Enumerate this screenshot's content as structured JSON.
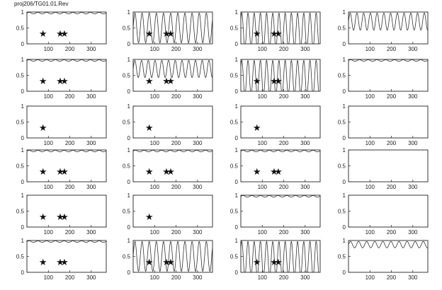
{
  "title": "proj206/TG01.01.Rev",
  "chart_data": {
    "type": "line",
    "rows": 6,
    "cols": 4,
    "xlim": [
      0,
      370
    ],
    "ylim": [
      0,
      1
    ],
    "x_ticks": [
      100,
      200,
      300
    ],
    "y_ticks": [
      0,
      0.5,
      1
    ],
    "x_tick_labels": [
      "100",
      "200",
      "300"
    ],
    "y_tick_labels": [
      "0",
      "0.5",
      "1"
    ],
    "x_tick_label_rows": [
      0,
      1,
      2,
      3,
      4,
      5
    ],
    "star_glyph": "★",
    "star_level": 0.33,
    "panels": [
      {
        "row": 0,
        "col": 0,
        "pattern": "flat-top",
        "stars": [
          75,
          155,
          175
        ]
      },
      {
        "row": 0,
        "col": 1,
        "pattern": "osc-full",
        "stars": [
          75,
          155,
          175
        ]
      },
      {
        "row": 0,
        "col": 2,
        "pattern": "osc-deep",
        "stars": [
          75,
          155,
          175
        ]
      },
      {
        "row": 0,
        "col": 3,
        "pattern": "osc-upper",
        "stars": []
      },
      {
        "row": 1,
        "col": 0,
        "pattern": "flat-top",
        "stars": [
          75,
          155,
          175
        ]
      },
      {
        "row": 1,
        "col": 1,
        "pattern": "osc-upper",
        "stars": [
          75,
          155,
          175
        ]
      },
      {
        "row": 1,
        "col": 2,
        "pattern": "osc-deep",
        "stars": [
          75,
          155,
          175
        ]
      },
      {
        "row": 1,
        "col": 3,
        "pattern": "flat-top",
        "stars": []
      },
      {
        "row": 2,
        "col": 0,
        "pattern": "none",
        "stars": [
          75
        ]
      },
      {
        "row": 2,
        "col": 1,
        "pattern": "none",
        "stars": [
          75
        ]
      },
      {
        "row": 2,
        "col": 2,
        "pattern": "none",
        "stars": [
          75
        ]
      },
      {
        "row": 2,
        "col": 3,
        "pattern": "none",
        "stars": []
      },
      {
        "row": 3,
        "col": 0,
        "pattern": "flat-top",
        "stars": [
          75,
          155,
          175
        ]
      },
      {
        "row": 3,
        "col": 1,
        "pattern": "flat-top",
        "stars": [
          75,
          155,
          175
        ]
      },
      {
        "row": 3,
        "col": 2,
        "pattern": "flat-top",
        "stars": [
          75,
          155,
          175
        ]
      },
      {
        "row": 3,
        "col": 3,
        "pattern": "none",
        "stars": []
      },
      {
        "row": 4,
        "col": 0,
        "pattern": "none",
        "stars": [
          75,
          155,
          175
        ]
      },
      {
        "row": 4,
        "col": 1,
        "pattern": "none",
        "stars": [
          75
        ]
      },
      {
        "row": 4,
        "col": 2,
        "pattern": "flat-top",
        "stars": []
      },
      {
        "row": 4,
        "col": 3,
        "pattern": "none",
        "stars": []
      },
      {
        "row": 5,
        "col": 0,
        "pattern": "flat-top",
        "stars": [
          75,
          155,
          175
        ]
      },
      {
        "row": 5,
        "col": 1,
        "pattern": "osc-full",
        "stars": [
          75,
          155,
          175
        ]
      },
      {
        "row": 5,
        "col": 2,
        "pattern": "osc-deep",
        "stars": [
          75,
          155,
          175
        ]
      },
      {
        "row": 5,
        "col": 3,
        "pattern": "osc-shallow",
        "stars": []
      }
    ]
  }
}
